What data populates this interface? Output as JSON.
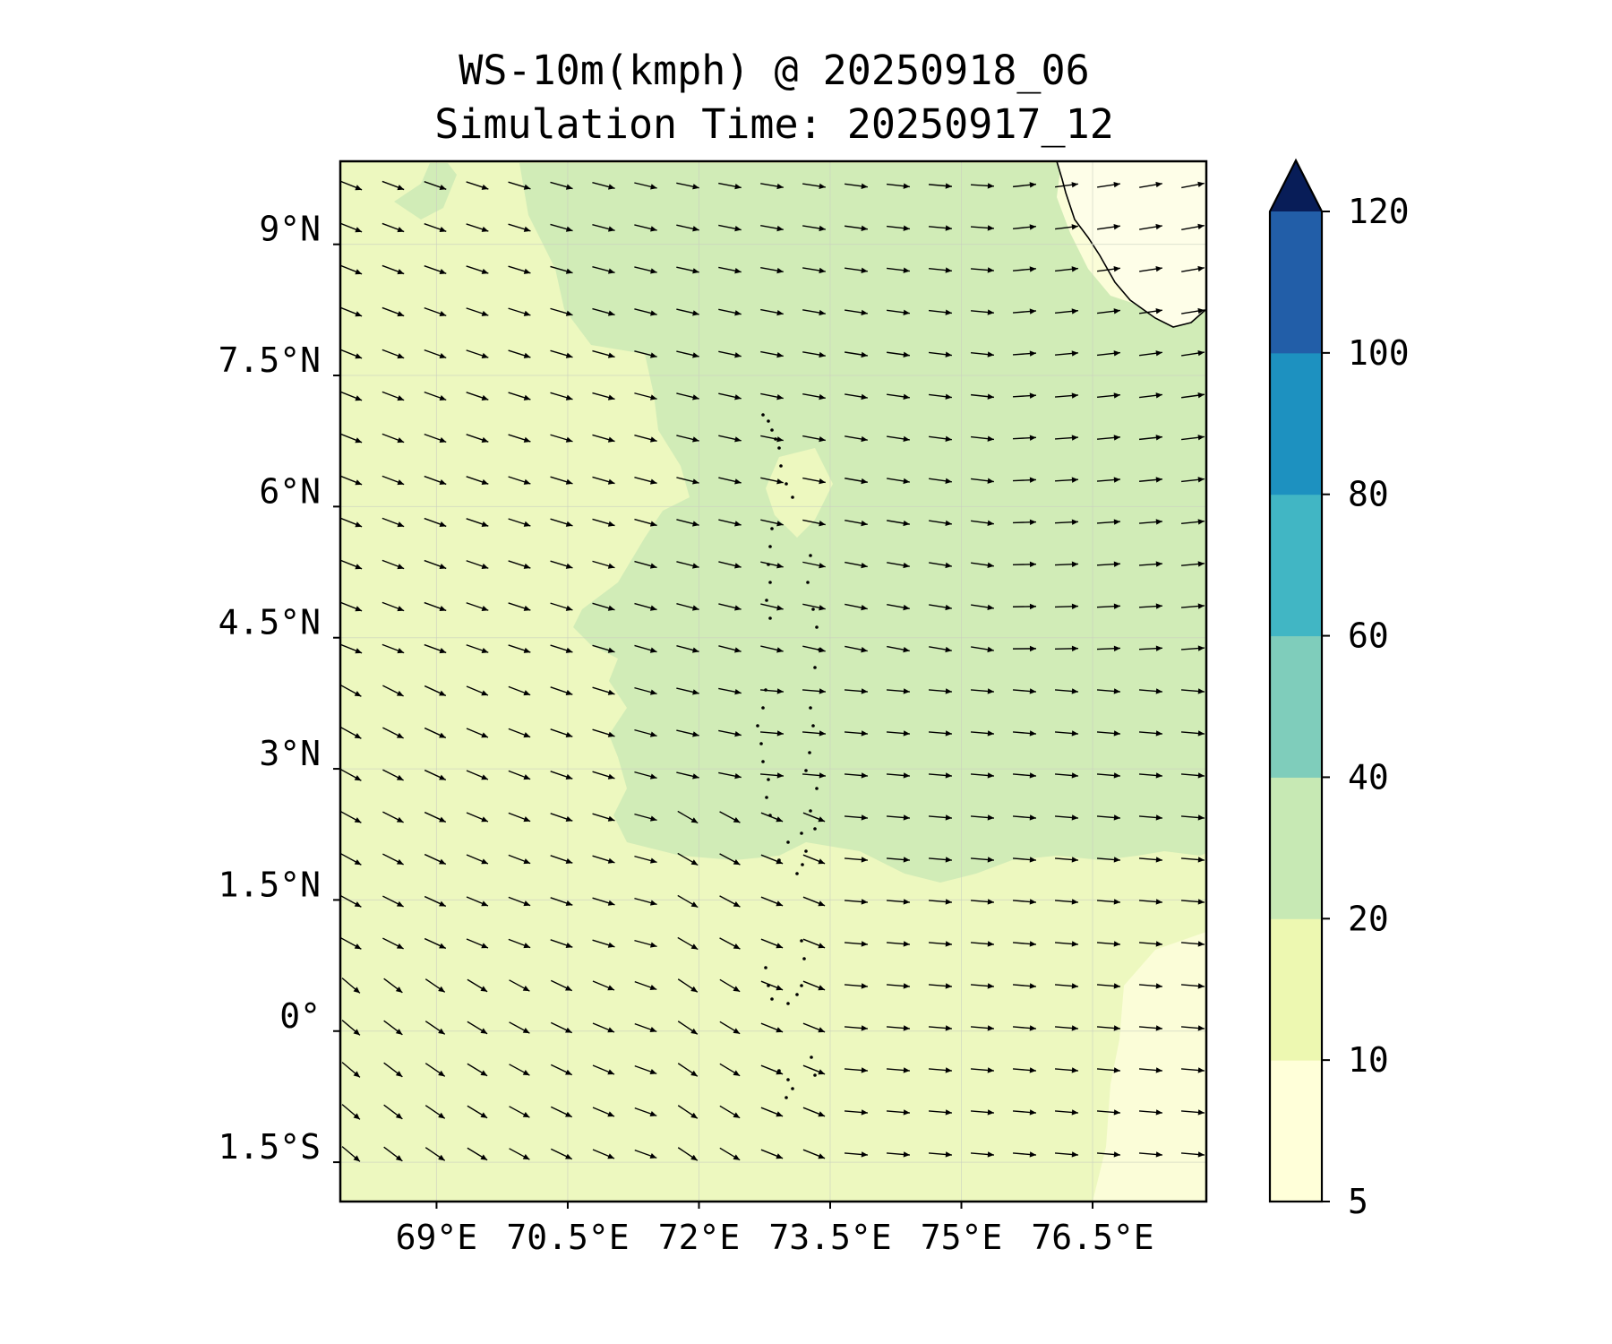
{
  "title": {
    "line1": "WS-10m(kmph) @ 20250918_06",
    "line2": "Simulation Time: 20250917_12"
  },
  "map": {
    "lon_range": [
      67.9,
      77.8
    ],
    "lat_range": [
      -1.95,
      9.95
    ],
    "lon_ticks": [
      {
        "value": 69.0,
        "label": "69°E"
      },
      {
        "value": 70.5,
        "label": "70.5°E"
      },
      {
        "value": 72.0,
        "label": "72°E"
      },
      {
        "value": 73.5,
        "label": "73.5°E"
      },
      {
        "value": 75.0,
        "label": "75°E"
      },
      {
        "value": 76.5,
        "label": "76.5°E"
      }
    ],
    "lat_ticks": [
      {
        "value": 9.0,
        "label": "9°N"
      },
      {
        "value": 7.5,
        "label": "7.5°N"
      },
      {
        "value": 6.0,
        "label": "6°N"
      },
      {
        "value": 4.5,
        "label": "4.5°N"
      },
      {
        "value": 3.0,
        "label": "3°N"
      },
      {
        "value": 1.5,
        "label": "1.5°N"
      },
      {
        "value": 0.0,
        "label": "0°"
      },
      {
        "value": -1.5,
        "label": "1.5°S"
      }
    ],
    "gridlines": true,
    "field_colors": {
      "background": "#edf8bf",
      "band_20_40": "#d1ecb7",
      "band_5_10": "#fbfdd8"
    },
    "wind_vectors": {
      "color": "#000000",
      "spacing_deg": 0.49
    }
  },
  "colorbar": {
    "levels": [
      5,
      10,
      20,
      40,
      60,
      80,
      100,
      120
    ],
    "labels": [
      "5",
      "10",
      "20",
      "40",
      "60",
      "80",
      "100",
      "120"
    ],
    "colors": [
      "#ffffd9",
      "#edf8b1",
      "#c7e9b4",
      "#7fcdbb",
      "#41b6c4",
      "#1d91c0",
      "#225ea8",
      "#253494"
    ],
    "extend_color": "#081d58",
    "extend": "max"
  }
}
